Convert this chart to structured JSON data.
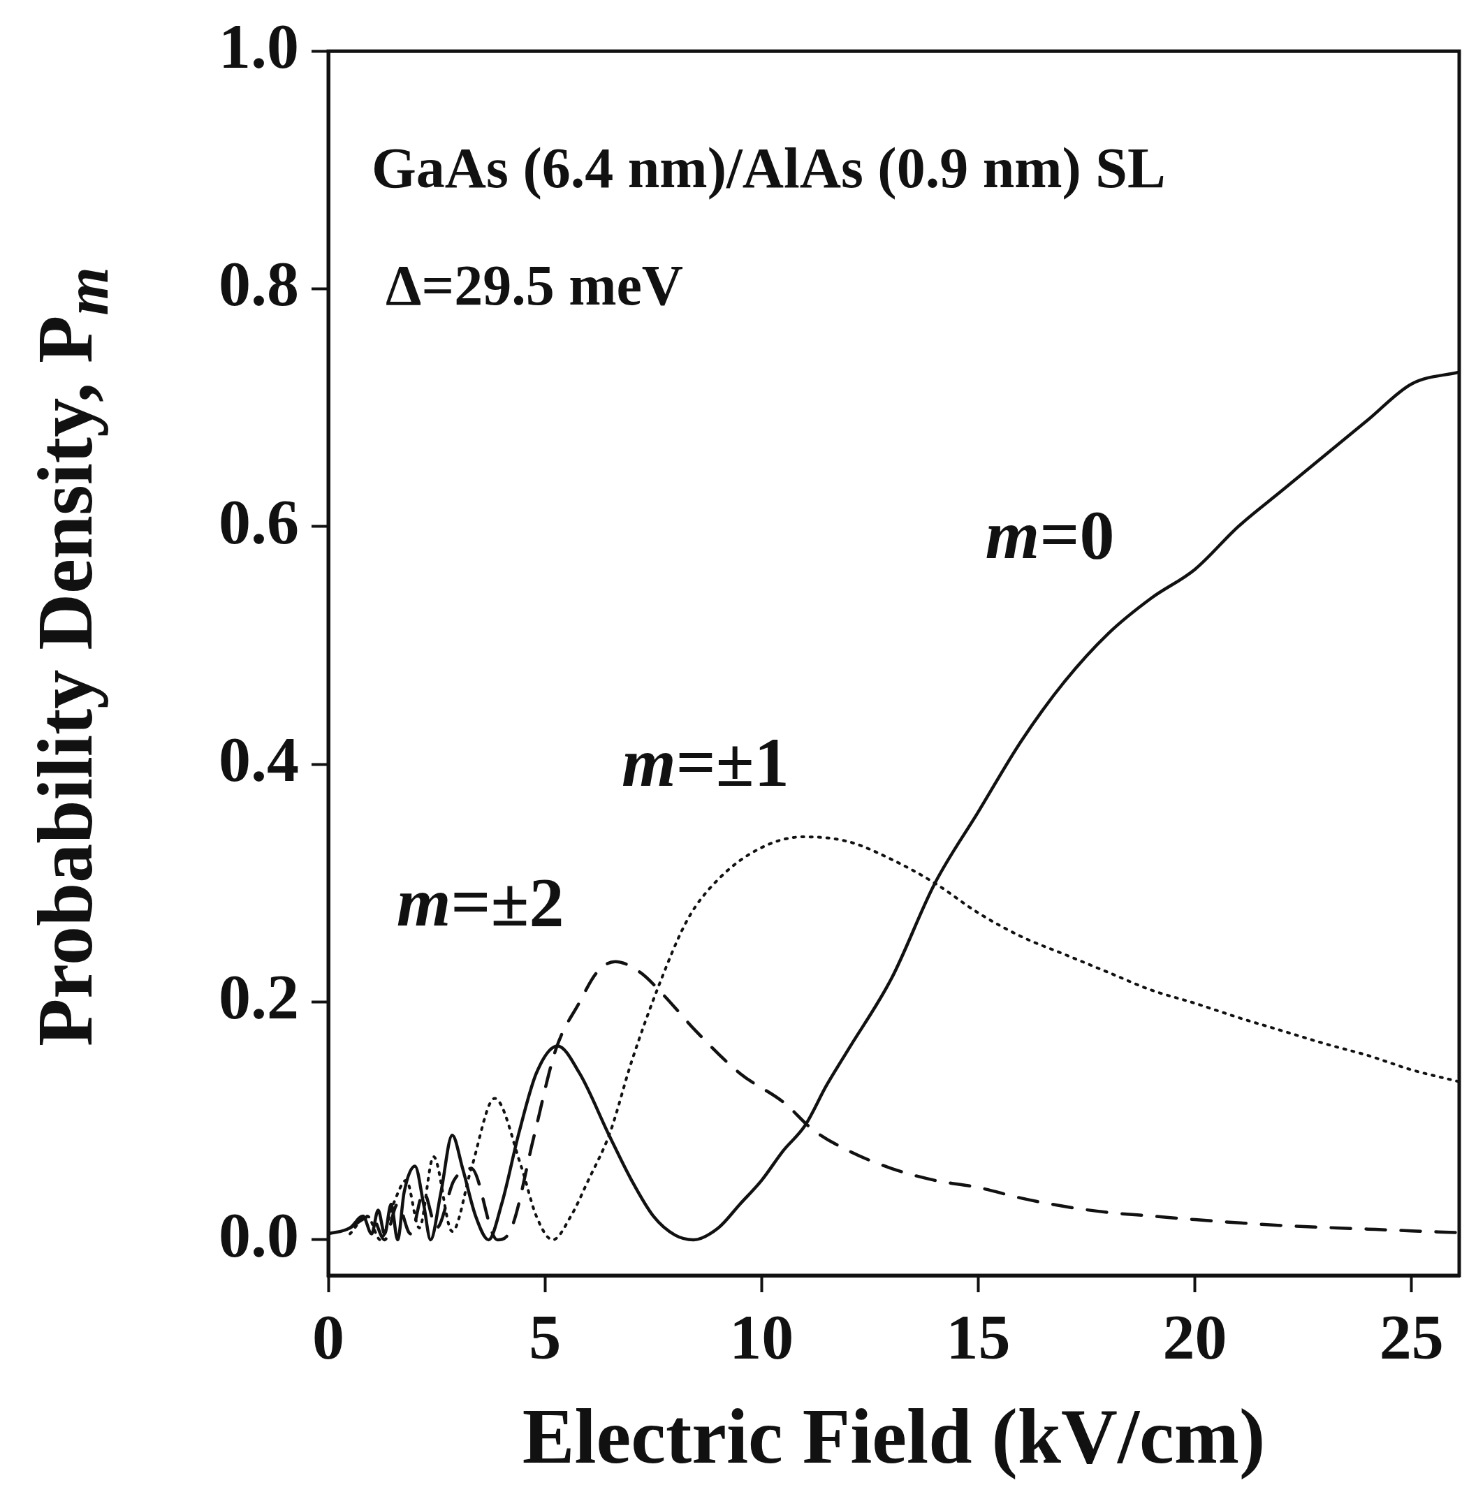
{
  "chart_data": {
    "type": "line",
    "xlabel": "Electric Field (kV/cm)",
    "ylabel": "Probability Density,  P$_{m}$",
    "xlim": [
      0,
      26.1
    ],
    "ylim": [
      -0.03,
      1.0
    ],
    "xticks": [
      0,
      5,
      10,
      15,
      20,
      25
    ],
    "yticks": [
      {
        "value": 0,
        "label": "0.0"
      },
      {
        "value": 0.2,
        "label": "0.2"
      },
      {
        "value": 0.4,
        "label": "0.4"
      },
      {
        "value": 0.6,
        "label": "0.6"
      },
      {
        "value": 0.8,
        "label": "0.8"
      },
      {
        "value": 1.0,
        "label": "1.0"
      }
    ],
    "grid": false,
    "legend": false,
    "marker": "none",
    "series": [
      {
        "name": "m=0",
        "color": "#111111",
        "line_style": "solid",
        "x": [
          0,
          0.5,
          0.8,
          1.0,
          1.15,
          1.3,
          1.45,
          1.6,
          1.75,
          2.0,
          2.2,
          2.36,
          2.6,
          2.86,
          3.1,
          3.4,
          3.7,
          4.0,
          4.4,
          4.8,
          5.29,
          5.8,
          6.48,
          7.0,
          7.5,
          8.0,
          8.43,
          9.0,
          9.5,
          10,
          10.5,
          11,
          11.5,
          12,
          13,
          14,
          15,
          16,
          17,
          18,
          19,
          20,
          21,
          22,
          23,
          24,
          25,
          26.1
        ],
        "values": [
          0.005,
          0.01,
          0.02,
          0.005,
          0.025,
          0.005,
          0.03,
          0.0,
          0.04,
          0.062,
          0.03,
          0.0,
          0.04,
          0.088,
          0.06,
          0.02,
          0.0,
          0.03,
          0.09,
          0.14,
          0.163,
          0.14,
          0.088,
          0.05,
          0.02,
          0.004,
          0.0,
          0.01,
          0.03,
          0.05,
          0.075,
          0.096,
          0.13,
          0.16,
          0.22,
          0.3,
          0.36,
          0.42,
          0.47,
          0.51,
          0.54,
          0.564,
          0.6,
          0.63,
          0.66,
          0.69,
          0.72,
          0.73
        ]
      },
      {
        "name": "m=±1",
        "color": "#111111",
        "line_style": "dotted",
        "x": [
          0.5,
          0.9,
          1.2,
          1.5,
          1.8,
          2.1,
          2.43,
          2.86,
          3.3,
          3.84,
          4.45,
          4.8,
          5.18,
          5.6,
          6.0,
          6.5,
          7.0,
          7.64,
          8.3,
          9.02,
          10,
          10.96,
          12,
          13,
          14,
          15,
          16,
          17,
          18,
          19,
          20,
          21,
          22,
          23,
          24,
          25,
          26.1
        ],
        "values": [
          0.005,
          0.02,
          0.0,
          0.03,
          0.05,
          0.01,
          0.07,
          0.007,
          0.06,
          0.119,
          0.062,
          0.02,
          0.0,
          0.02,
          0.05,
          0.09,
          0.15,
          0.215,
          0.27,
          0.304,
          0.33,
          0.339,
          0.335,
          0.32,
          0.3,
          0.275,
          0.255,
          0.24,
          0.225,
          0.21,
          0.199,
          0.187,
          0.176,
          0.165,
          0.155,
          0.143,
          0.133
        ]
      },
      {
        "name": "m=±2",
        "color": "#111111",
        "line_style": "dashed",
        "x": [
          0.5,
          1.0,
          1.3,
          1.6,
          1.9,
          2.2,
          2.5,
          2.9,
          3.3,
          3.9,
          4.23,
          4.74,
          5.25,
          5.8,
          6.2,
          6.62,
          7.2,
          7.71,
          8.5,
          9.5,
          10.53,
          11.17,
          12,
          13,
          14,
          15,
          16,
          17,
          18,
          19,
          20,
          22,
          24,
          25,
          26.1
        ],
        "values": [
          0.01,
          0.02,
          0.0,
          0.03,
          0.005,
          0.04,
          0.01,
          0.05,
          0.06,
          0.0,
          0.01,
          0.086,
          0.16,
          0.2,
          0.225,
          0.234,
          0.225,
          0.207,
          0.175,
          0.14,
          0.115,
          0.093,
          0.075,
          0.06,
          0.05,
          0.044,
          0.035,
          0.028,
          0.023,
          0.02,
          0.017,
          0.012,
          0.009,
          0.0075,
          0.006
        ]
      }
    ],
    "annotations": [
      "GaAs (6.4 nm)/AlAs (0.9 nm) SL",
      "Δ=29.5 meV"
    ]
  }
}
